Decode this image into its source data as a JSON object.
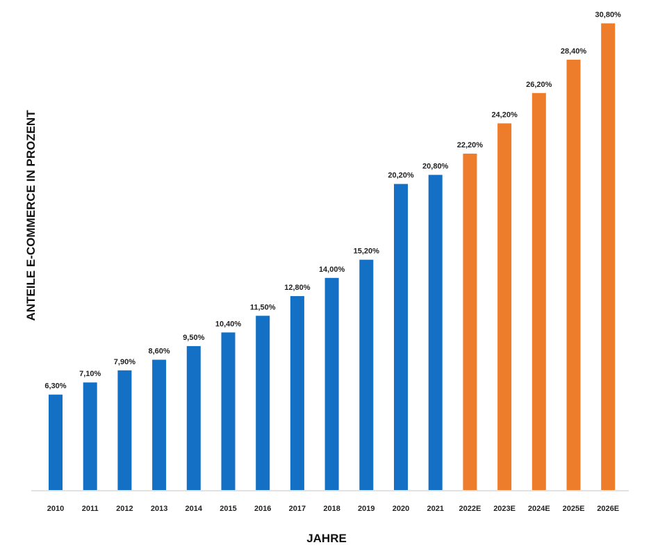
{
  "chart_data": {
    "type": "bar",
    "title": "",
    "xlabel": "JAHRE",
    "ylabel": "ANTEILE E-COMMERCE IN PROZENT",
    "ylim": [
      0,
      32
    ],
    "grid": false,
    "categories": [
      "2010",
      "2011",
      "2012",
      "2013",
      "2014",
      "2015",
      "2016",
      "2017",
      "2018",
      "2019",
      "2020",
      "2021",
      "2022E",
      "2023E",
      "2024E",
      "2025E",
      "2026E"
    ],
    "values": [
      6.3,
      7.1,
      7.9,
      8.6,
      9.5,
      10.4,
      11.5,
      12.8,
      14.0,
      15.2,
      20.2,
      20.8,
      22.2,
      24.2,
      26.2,
      28.4,
      30.8
    ],
    "data_labels": [
      "6,30%",
      "7,10%",
      "7,90%",
      "8,60%",
      "9,50%",
      "10,40%",
      "11,50%",
      "12,80%",
      "14,00%",
      "15,20%",
      "20,20%",
      "20,80%",
      "22,20%",
      "24,20%",
      "26,20%",
      "28,40%",
      "30,80%"
    ],
    "forecast": [
      false,
      false,
      false,
      false,
      false,
      false,
      false,
      false,
      false,
      false,
      false,
      false,
      true,
      true,
      true,
      true,
      true
    ],
    "colors": {
      "actual": "#1470c4",
      "forecast": "#ee7d2b",
      "axis": "#d9d9d9"
    }
  }
}
